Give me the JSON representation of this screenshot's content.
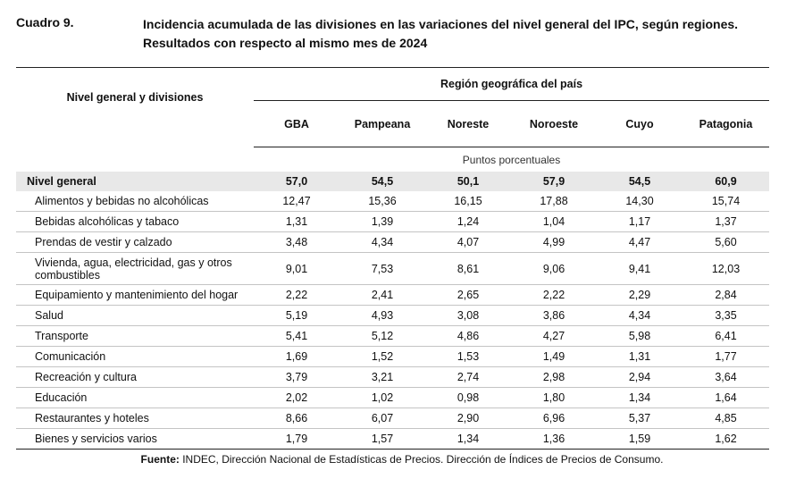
{
  "header": {
    "label": "Cuadro 9.",
    "title_line1": "Incidencia acumulada de las divisiones en las variaciones del nivel general del IPC, según regiones.",
    "title_line2": "Resultados con respecto al mismo mes de 2024"
  },
  "table": {
    "row_header": "Nivel general y divisiones",
    "group_header": "Región geográfica del país",
    "columns": [
      "GBA",
      "Pampeana",
      "Noreste",
      "Noroeste",
      "Cuyo",
      "Patagonia"
    ],
    "unit": "Puntos porcentuales",
    "rows": [
      {
        "name": "Nivel general",
        "values": [
          "57,0",
          "54,5",
          "50,1",
          "57,9",
          "54,5",
          "60,9"
        ]
      },
      {
        "name": "Alimentos y bebidas no alcohólicas",
        "values": [
          "12,47",
          "15,36",
          "16,15",
          "17,88",
          "14,30",
          "15,74"
        ]
      },
      {
        "name": "Bebidas alcohólicas y tabaco",
        "values": [
          "1,31",
          "1,39",
          "1,24",
          "1,04",
          "1,17",
          "1,37"
        ]
      },
      {
        "name": "Prendas de vestir y calzado",
        "values": [
          "3,48",
          "4,34",
          "4,07",
          "4,99",
          "4,47",
          "5,60"
        ]
      },
      {
        "name": "Vivienda, agua, electricidad, gas y otros combustibles",
        "values": [
          "9,01",
          "7,53",
          "8,61",
          "9,06",
          "9,41",
          "12,03"
        ]
      },
      {
        "name": "Equipamiento y mantenimiento del hogar",
        "values": [
          "2,22",
          "2,41",
          "2,65",
          "2,22",
          "2,29",
          "2,84"
        ]
      },
      {
        "name": "Salud",
        "values": [
          "5,19",
          "4,93",
          "3,08",
          "3,86",
          "4,34",
          "3,35"
        ]
      },
      {
        "name": "Transporte",
        "values": [
          "5,41",
          "5,12",
          "4,86",
          "4,27",
          "5,98",
          "6,41"
        ]
      },
      {
        "name": "Comunicación",
        "values": [
          "1,69",
          "1,52",
          "1,53",
          "1,49",
          "1,31",
          "1,77"
        ]
      },
      {
        "name": "Recreación y cultura",
        "values": [
          "3,79",
          "3,21",
          "2,74",
          "2,98",
          "2,94",
          "3,64"
        ]
      },
      {
        "name": "Educación",
        "values": [
          "2,02",
          "1,02",
          "0,98",
          "1,80",
          "1,34",
          "1,64"
        ]
      },
      {
        "name": "Restaurantes y hoteles",
        "values": [
          "8,66",
          "6,07",
          "2,90",
          "6,96",
          "5,37",
          "4,85"
        ]
      },
      {
        "name": "Bienes y servicios varios",
        "values": [
          "1,79",
          "1,57",
          "1,34",
          "1,36",
          "1,59",
          "1,62"
        ]
      }
    ]
  },
  "source": {
    "label": "Fuente:",
    "text": " INDEC, Dirección Nacional de Estadísticas de Precios. Dirección de Índices de Precios de Consumo."
  }
}
